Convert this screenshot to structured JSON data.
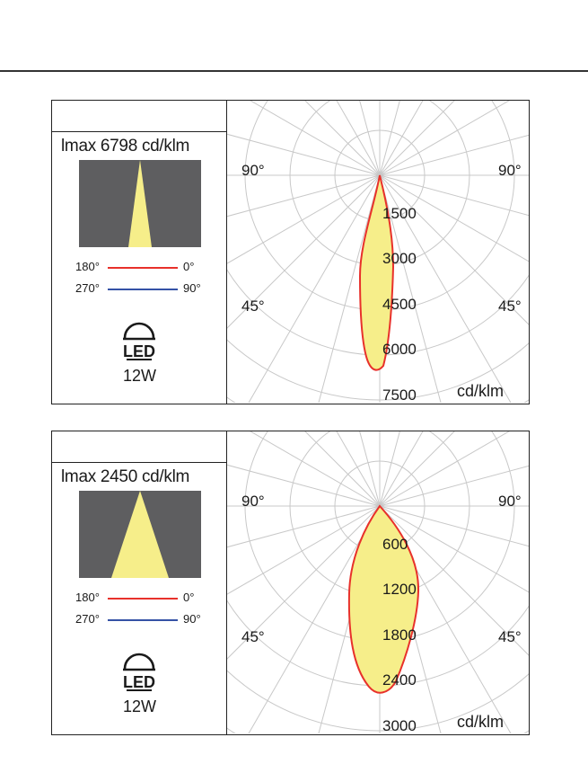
{
  "diagrams": [
    {
      "imax": "lmax 6798 cd/klm",
      "legend": {
        "c0_180_a": "180°",
        "c0_180_b": "0°",
        "c90_270_a": "270°",
        "c90_270_b": "90°"
      },
      "led_label": "LED",
      "power": "12W",
      "angle_labels": {
        "left_90": "90°",
        "right_90": "90°",
        "left_45": "45°",
        "right_45": "45°"
      },
      "radial_labels": [
        "1500",
        "3000",
        "4500",
        "6000",
        "7500"
      ],
      "unit": "cd/klm",
      "colors": {
        "c0_180": "#e8312b",
        "c90_270": "#3552a6",
        "fill": "#f6ee8a",
        "beam_bg": "#5e5e60"
      }
    },
    {
      "imax": "lmax 2450 cd/klm",
      "legend": {
        "c0_180_a": "180°",
        "c0_180_b": "0°",
        "c90_270_a": "270°",
        "c90_270_b": "90°"
      },
      "led_label": "LED",
      "power": "12W",
      "angle_labels": {
        "left_90": "90°",
        "right_90": "90°",
        "left_45": "45°",
        "right_45": "45°"
      },
      "radial_labels": [
        "600",
        "1200",
        "1800",
        "2400",
        "3000"
      ],
      "unit": "cd/klm",
      "colors": {
        "c0_180": "#e8312b",
        "c90_270": "#3552a6",
        "fill": "#f6ee8a",
        "beam_bg": "#5e5e60"
      }
    }
  ]
}
